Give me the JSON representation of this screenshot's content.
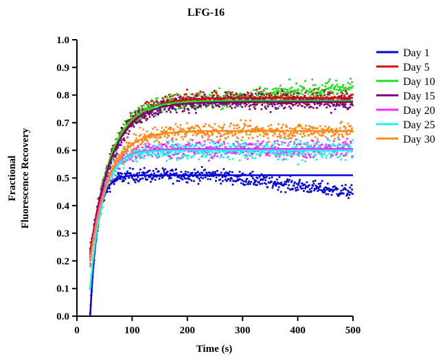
{
  "chart_data": {
    "type": "scatter",
    "title": "LFG-16",
    "xlabel": "Time (s)",
    "ylabel_lines": [
      "Fractional",
      "Fluorescence Recovery"
    ],
    "xlim": [
      0,
      500
    ],
    "ylim": [
      0,
      1.0
    ],
    "x_ticks": [
      "0",
      "100",
      "200",
      "300",
      "400",
      "500"
    ],
    "y_ticks": [
      "0.0",
      "0.1",
      "0.2",
      "0.3",
      "0.4",
      "0.5",
      "0.6",
      "0.7",
      "0.8",
      "0.9",
      "1.0"
    ],
    "grid": false,
    "legend_position": "right",
    "x_start": 24,
    "series": [
      {
        "name": "Day 1",
        "color": "#0000dd",
        "plateau": 0.51,
        "y0": 0.0,
        "rate": 0.075,
        "scatter_noise": 0.025,
        "drift_after": 250,
        "drift_slope": -0.00025
      },
      {
        "name": "Day 5",
        "color": "#dd0000",
        "plateau": 0.79,
        "y0": 0.23,
        "rate": 0.025,
        "scatter_noise": 0.03,
        "drift_after": 500,
        "drift_slope": 0
      },
      {
        "name": "Day 10",
        "color": "#22dd22",
        "plateau": 0.78,
        "y0": 0.2,
        "rate": 0.028,
        "scatter_noise": 0.035,
        "drift_after": 250,
        "drift_slope": 0.0002
      },
      {
        "name": "Day 15",
        "color": "#7a007a",
        "plateau": 0.775,
        "y0": 0.22,
        "rate": 0.026,
        "scatter_noise": 0.03,
        "drift_after": 500,
        "drift_slope": 0
      },
      {
        "name": "Day 20",
        "color": "#ff22ff",
        "plateau": 0.605,
        "y0": 0.2,
        "rate": 0.04,
        "scatter_noise": 0.035,
        "drift_after": 500,
        "drift_slope": 0
      },
      {
        "name": "Day 25",
        "color": "#22eeee",
        "plateau": 0.6,
        "y0": 0.1,
        "rate": 0.045,
        "scatter_noise": 0.035,
        "drift_after": 500,
        "drift_slope": 0
      },
      {
        "name": "Day 30",
        "color": "#ff8a1a",
        "plateau": 0.67,
        "y0": 0.2,
        "rate": 0.03,
        "scatter_noise": 0.03,
        "drift_after": 500,
        "drift_slope": 0
      }
    ]
  }
}
